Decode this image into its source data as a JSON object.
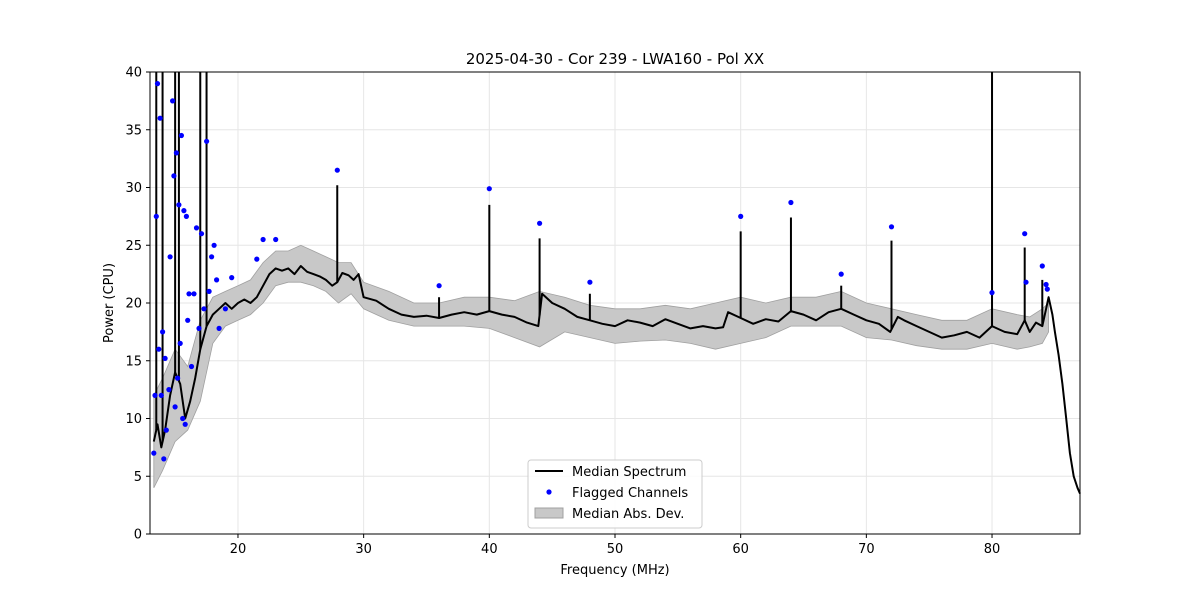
{
  "chart_data": {
    "type": "line",
    "title": "2025-04-30 - Cor 239 - LWA160 - Pol XX",
    "xlabel": "Frequency (MHz)",
    "ylabel": "Power (CPU)",
    "xlim": [
      13,
      87
    ],
    "ylim": [
      0,
      40
    ],
    "xticks": [
      20,
      30,
      40,
      50,
      60,
      70,
      80
    ],
    "xtick_labels": [
      "20",
      "30",
      "40",
      "50",
      "60",
      "70",
      "80"
    ],
    "yticks": [
      0,
      5,
      10,
      15,
      20,
      25,
      30,
      35,
      40
    ],
    "ytick_labels": [
      "0",
      "5",
      "10",
      "15",
      "20",
      "25",
      "30",
      "35",
      "40"
    ],
    "grid": true,
    "legend_position": "lower-center",
    "colors": {
      "median": "#000000",
      "flagged": "#0000ff",
      "mad": "#c8c8c8",
      "mad_edge": "#a0a0a0",
      "grid": "#e6e6e6"
    },
    "series": [
      {
        "name": "Median Spectrum",
        "kind": "line",
        "x": [
          13.3,
          13.6,
          13.9,
          14.2,
          14.6,
          15.0,
          15.4,
          15.8,
          16.2,
          16.6,
          17.0,
          17.5,
          18.0,
          18.5,
          19.0,
          19.5,
          20.0,
          20.5,
          21.0,
          21.5,
          22.0,
          22.5,
          23.0,
          23.5,
          24.0,
          24.5,
          25.0,
          25.5,
          26.0,
          26.5,
          27.0,
          27.5,
          27.9,
          28.3,
          28.8,
          29.2,
          29.6,
          30.0,
          31.0,
          32.0,
          33.0,
          34.0,
          35.0,
          36.0,
          37.0,
          38.0,
          39.0,
          40.0,
          41.0,
          42.0,
          43.0,
          43.9,
          44.2,
          45.0,
          46.0,
          47.0,
          48.0,
          49.0,
          50.0,
          51.0,
          52.0,
          53.0,
          54.0,
          55.0,
          56.0,
          57.0,
          58.0,
          58.6,
          59.0,
          60.0,
          61.0,
          62.0,
          63.0,
          64.0,
          65.0,
          66.0,
          67.0,
          68.0,
          69.0,
          70.0,
          71.0,
          71.9,
          72.5,
          73.0,
          74.0,
          75.0,
          76.0,
          77.0,
          78.0,
          79.0,
          80.0,
          81.0,
          82.0,
          82.6,
          83.0,
          83.5,
          84.0,
          84.3,
          84.5,
          84.8,
          85.0,
          85.3,
          85.6,
          85.9,
          86.2,
          86.5,
          86.8,
          87.0
        ],
        "y": [
          8.0,
          9.5,
          7.5,
          9.0,
          12.0,
          14.0,
          13.0,
          10.0,
          11.5,
          13.5,
          16.0,
          18.0,
          19.0,
          19.5,
          20.0,
          19.5,
          20.0,
          20.3,
          20.0,
          20.5,
          21.5,
          22.5,
          23.0,
          22.8,
          23.0,
          22.5,
          23.2,
          22.7,
          22.5,
          22.3,
          22.0,
          21.5,
          21.8,
          22.6,
          22.4,
          22.0,
          22.5,
          20.5,
          20.2,
          19.5,
          19.0,
          18.8,
          18.9,
          18.7,
          19.0,
          19.2,
          19.0,
          19.3,
          19.0,
          18.8,
          18.3,
          18.0,
          20.8,
          20.0,
          19.5,
          18.8,
          18.5,
          18.2,
          18.0,
          18.5,
          18.3,
          18.0,
          18.6,
          18.2,
          17.8,
          18.0,
          17.8,
          17.9,
          19.2,
          18.7,
          18.2,
          18.6,
          18.4,
          19.3,
          19.0,
          18.5,
          19.2,
          19.5,
          19.0,
          18.5,
          18.2,
          17.5,
          18.8,
          18.5,
          18.0,
          17.5,
          17.0,
          17.2,
          17.5,
          17.0,
          18.0,
          17.5,
          17.3,
          18.5,
          17.5,
          18.3,
          18.0,
          19.5,
          20.5,
          19.0,
          17.5,
          15.5,
          13.0,
          10.0,
          7.0,
          5.0,
          4.0,
          3.5
        ]
      },
      {
        "name": "Flagged Channels",
        "kind": "scatter",
        "x": [
          13.3,
          13.4,
          13.5,
          13.6,
          13.7,
          13.8,
          13.9,
          14.0,
          14.1,
          14.2,
          14.3,
          14.5,
          14.6,
          14.8,
          14.9,
          15.0,
          15.1,
          15.2,
          15.3,
          15.4,
          15.5,
          15.6,
          15.7,
          15.8,
          15.9,
          16.0,
          16.1,
          16.3,
          16.5,
          16.7,
          16.9,
          17.1,
          17.3,
          17.5,
          17.7,
          17.9,
          18.1,
          18.3,
          18.5,
          19.0,
          19.5,
          21.5,
          22.0,
          23.0,
          27.9,
          36.0,
          40.0,
          44.0,
          48.0,
          60.0,
          64.0,
          68.0,
          72.0,
          80.0,
          82.6,
          82.7,
          84.0,
          84.3,
          84.4
        ],
        "y": [
          7.0,
          12.0,
          27.5,
          39.0,
          16.0,
          36.0,
          12.0,
          17.5,
          6.5,
          15.2,
          9.0,
          12.5,
          24.0,
          37.5,
          31.0,
          11.0,
          33.0,
          13.5,
          28.5,
          16.5,
          34.5,
          10.0,
          28.0,
          9.5,
          27.5,
          18.5,
          20.8,
          14.5,
          20.8,
          26.5,
          17.8,
          26.0,
          19.5,
          34.0,
          21.0,
          24.0,
          25.0,
          22.0,
          17.8,
          19.5,
          22.2,
          23.8,
          25.5,
          25.5,
          31.5,
          21.5,
          29.9,
          26.9,
          21.8,
          27.5,
          28.7,
          22.5,
          26.6,
          20.9,
          26.0,
          21.8,
          23.2,
          21.6,
          21.2
        ]
      },
      {
        "name": "Median Abs. Dev.",
        "kind": "band",
        "x": [
          13.3,
          14.0,
          15.0,
          16.0,
          17.0,
          18.0,
          19.0,
          20.0,
          21.0,
          22.0,
          23.0,
          24.0,
          25.0,
          26.0,
          27.0,
          28.0,
          29.0,
          30.0,
          32.0,
          34.0,
          36.0,
          38.0,
          40.0,
          42.0,
          44.0,
          46.0,
          48.0,
          50.0,
          52.0,
          54.0,
          56.0,
          58.0,
          60.0,
          62.0,
          64.0,
          66.0,
          68.0,
          70.0,
          72.0,
          74.0,
          76.0,
          78.0,
          80.0,
          82.0,
          83.0,
          84.0,
          84.5
        ],
        "lower": [
          4.0,
          5.5,
          8.0,
          9.0,
          11.5,
          16.5,
          18.0,
          18.5,
          19.0,
          20.0,
          21.5,
          21.8,
          21.8,
          21.5,
          21.0,
          20.0,
          20.8,
          19.5,
          18.5,
          18.0,
          18.0,
          18.0,
          17.8,
          17.0,
          16.2,
          17.5,
          17.0,
          16.5,
          16.7,
          16.8,
          16.5,
          16.0,
          16.5,
          17.0,
          18.0,
          18.0,
          18.0,
          17.0,
          16.8,
          16.3,
          16.0,
          16.0,
          16.5,
          16.0,
          16.2,
          16.5,
          17.5
        ],
        "upper": [
          12.0,
          13.5,
          16.0,
          14.5,
          18.5,
          20.5,
          21.0,
          21.5,
          22.0,
          23.5,
          24.5,
          24.5,
          25.0,
          24.5,
          24.0,
          23.5,
          23.5,
          21.8,
          21.0,
          20.0,
          20.0,
          20.5,
          20.5,
          20.2,
          21.0,
          20.5,
          19.8,
          19.5,
          19.5,
          19.8,
          19.5,
          20.0,
          20.5,
          20.0,
          20.5,
          20.5,
          21.0,
          20.0,
          19.5,
          19.0,
          18.5,
          18.5,
          19.5,
          19.0,
          18.8,
          19.5,
          20.0
        ]
      }
    ],
    "rfi_spikes": [
      {
        "x": 27.9,
        "top": 30.2
      },
      {
        "x": 36.0,
        "top": 20.5
      },
      {
        "x": 40.0,
        "top": 28.5
      },
      {
        "x": 44.0,
        "top": 25.6
      },
      {
        "x": 48.0,
        "top": 20.8
      },
      {
        "x": 60.0,
        "top": 26.2
      },
      {
        "x": 64.0,
        "top": 27.4
      },
      {
        "x": 68.0,
        "top": 21.5
      },
      {
        "x": 72.0,
        "top": 25.4
      },
      {
        "x": 80.0,
        "top": 40.0
      },
      {
        "x": 82.6,
        "top": 24.8
      },
      {
        "x": 84.0,
        "top": 22.0
      },
      {
        "x": 17.0,
        "top": 40.0
      },
      {
        "x": 17.5,
        "top": 40.0
      },
      {
        "x": 13.5,
        "top": 40.0
      },
      {
        "x": 14.0,
        "top": 40.0
      },
      {
        "x": 15.0,
        "top": 40.0
      },
      {
        "x": 15.3,
        "top": 40.0
      }
    ],
    "legend": [
      "Median Spectrum",
      "Flagged Channels",
      "Median Abs. Dev."
    ]
  }
}
